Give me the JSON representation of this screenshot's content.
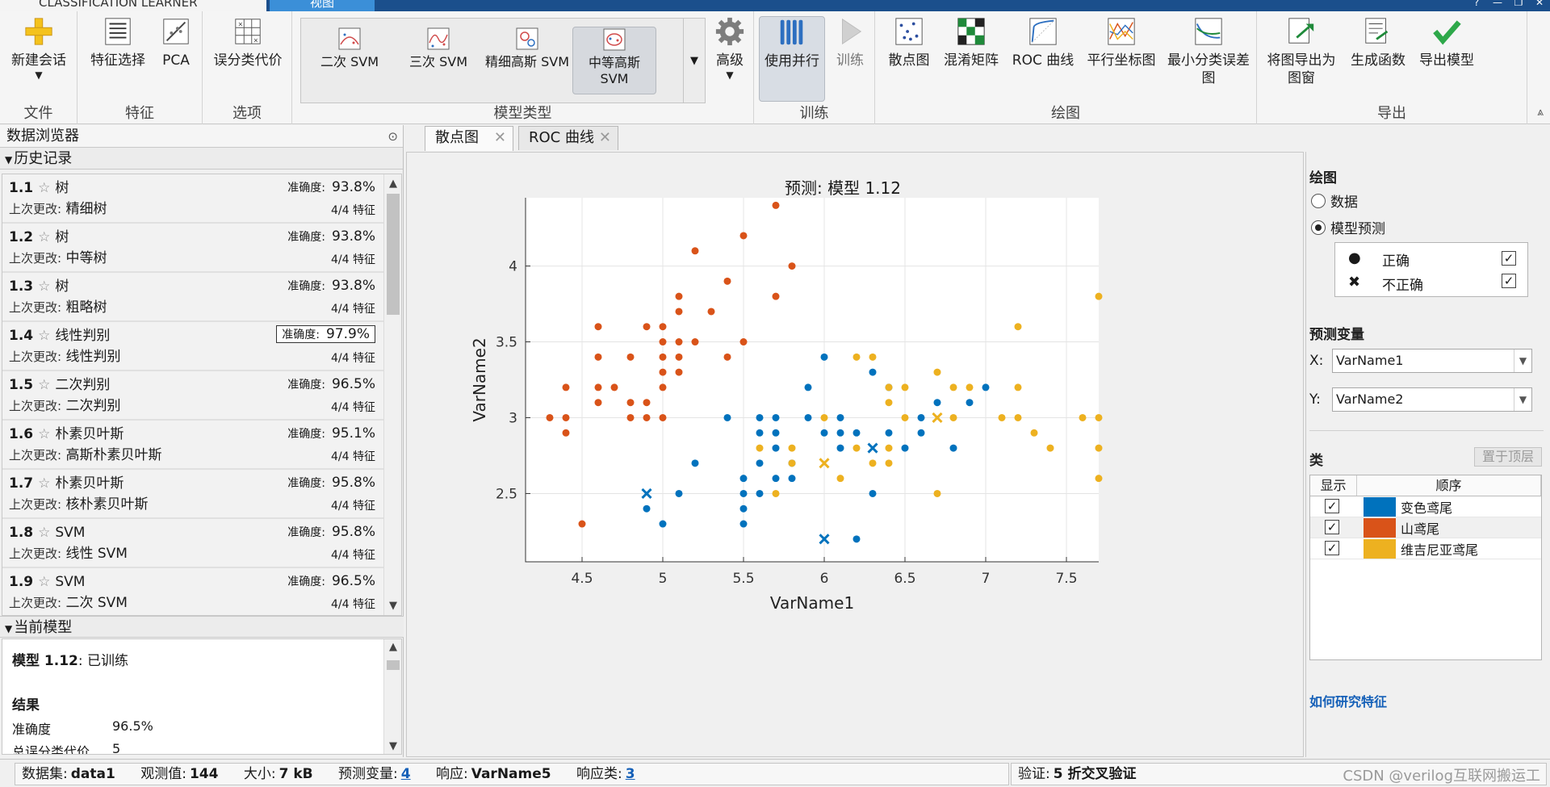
{
  "titlebar": {
    "app_tab": "CLASSIFICATION LEARNER",
    "view_tab": "视图"
  },
  "ribbon": {
    "file": {
      "group": "文件",
      "new_session": "新建会话"
    },
    "features": {
      "group": "特征",
      "feature_selection": "特征选择",
      "pca": "PCA"
    },
    "options": {
      "group": "选项",
      "misclass_cost": "误分类代价"
    },
    "model_type": {
      "group": "模型类型",
      "items": [
        "二次 SVM",
        "三次 SVM",
        "精细高斯 SVM",
        "中等高斯 SVM"
      ],
      "advanced": "高级"
    },
    "training": {
      "group": "训练",
      "parallel": "使用并行",
      "train": "训练"
    },
    "plots": {
      "group": "绘图",
      "items": [
        "散点图",
        "混淆矩阵",
        "ROC 曲线",
        "平行坐标图",
        "最小分类误差图"
      ]
    },
    "export": {
      "group": "导出",
      "items": [
        "将图导出为图窗",
        "生成函数",
        "导出模型"
      ]
    }
  },
  "data_browser": {
    "title": "数据浏览器",
    "history_label": "历史记录",
    "items": [
      {
        "num": "1.1",
        "name": "树",
        "acc_label": "准确度:",
        "acc": "93.8%",
        "changed_label": "上次更改:",
        "changed": "精细树",
        "features": "4/4 特征"
      },
      {
        "num": "1.2",
        "name": "树",
        "acc_label": "准确度:",
        "acc": "93.8%",
        "changed_label": "上次更改:",
        "changed": "中等树",
        "features": "4/4 特征"
      },
      {
        "num": "1.3",
        "name": "树",
        "acc_label": "准确度:",
        "acc": "93.8%",
        "changed_label": "上次更改:",
        "changed": "粗略树",
        "features": "4/4 特征"
      },
      {
        "num": "1.4",
        "name": "线性判别",
        "acc_label": "准确度:",
        "acc": "97.9%",
        "changed_label": "上次更改:",
        "changed": "线性判别",
        "features": "4/4 特征"
      },
      {
        "num": "1.5",
        "name": "二次判别",
        "acc_label": "准确度:",
        "acc": "96.5%",
        "changed_label": "上次更改:",
        "changed": "二次判别",
        "features": "4/4 特征"
      },
      {
        "num": "1.6",
        "name": "朴素贝叶斯",
        "acc_label": "准确度:",
        "acc": "95.1%",
        "changed_label": "上次更改:",
        "changed": "高斯朴素贝叶斯",
        "features": "4/4 特征"
      },
      {
        "num": "1.7",
        "name": "朴素贝叶斯",
        "acc_label": "准确度:",
        "acc": "95.8%",
        "changed_label": "上次更改:",
        "changed": "核朴素贝叶斯",
        "features": "4/4 特征"
      },
      {
        "num": "1.8",
        "name": "SVM",
        "acc_label": "准确度:",
        "acc": "95.8%",
        "changed_label": "上次更改:",
        "changed": "线性 SVM",
        "features": "4/4 特征"
      },
      {
        "num": "1.9",
        "name": "SVM",
        "acc_label": "准确度:",
        "acc": "96.5%",
        "changed_label": "上次更改:",
        "changed": "二次 SVM",
        "features": "4/4 特征"
      }
    ],
    "current_model_label": "当前模型",
    "current_model": {
      "title_prefix": "模型 1.12",
      "title_suffix": ": 已训练",
      "results_label": "结果",
      "accuracy_label": "准确度",
      "accuracy": "96.5%",
      "cost_label": "总误分类代价",
      "cost": "5"
    }
  },
  "doc_tabs": [
    "散点图",
    "ROC 曲线"
  ],
  "plot": {
    "title": "预测: 模型 1.12",
    "xlabel": "VarName1",
    "ylabel": "VarName2"
  },
  "chart_data": {
    "type": "scatter",
    "title": "预测: 模型 1.12",
    "xlabel": "VarName1",
    "ylabel": "VarName2",
    "xlim": [
      4.15,
      7.7
    ],
    "ylim": [
      2.05,
      4.45
    ],
    "xticks": [
      "4.5",
      "5",
      "5.5",
      "6",
      "6.5",
      "7",
      "7.5"
    ],
    "yticks": [
      "2.5",
      "3",
      "3.5",
      "4"
    ],
    "grid": true,
    "colors": {
      "变色鸢尾": "#0072BD",
      "山鸢尾": "#D95319",
      "维吉尼亚鸢尾": "#EDB120"
    },
    "series": [
      {
        "name": "山鸢尾",
        "correct": [
          [
            5.7,
            4.4
          ],
          [
            5.5,
            4.2
          ],
          [
            5.2,
            4.1
          ],
          [
            5.8,
            4.0
          ],
          [
            5.4,
            3.9
          ],
          [
            5.1,
            3.8
          ],
          [
            5.7,
            3.8
          ],
          [
            5.1,
            3.7
          ],
          [
            5.3,
            3.7
          ],
          [
            4.6,
            3.6
          ],
          [
            4.9,
            3.6
          ],
          [
            5.0,
            3.6
          ],
          [
            5.0,
            3.5
          ],
          [
            5.1,
            3.5
          ],
          [
            5.2,
            3.5
          ],
          [
            5.5,
            3.5
          ],
          [
            4.6,
            3.4
          ],
          [
            4.8,
            3.4
          ],
          [
            5.0,
            3.4
          ],
          [
            5.1,
            3.4
          ],
          [
            5.4,
            3.4
          ],
          [
            5.0,
            3.3
          ],
          [
            5.1,
            3.3
          ],
          [
            4.4,
            3.2
          ],
          [
            4.6,
            3.2
          ],
          [
            4.7,
            3.2
          ],
          [
            5.0,
            3.2
          ],
          [
            4.6,
            3.1
          ],
          [
            4.8,
            3.1
          ],
          [
            4.9,
            3.1
          ],
          [
            4.3,
            3.0
          ],
          [
            4.4,
            3.0
          ],
          [
            4.8,
            3.0
          ],
          [
            4.9,
            3.0
          ],
          [
            5.0,
            3.0
          ],
          [
            4.4,
            2.9
          ],
          [
            4.5,
            2.3
          ]
        ],
        "incorrect": []
      },
      {
        "name": "变色鸢尾",
        "correct": [
          [
            6.0,
            3.4
          ],
          [
            6.3,
            3.3
          ],
          [
            5.9,
            3.2
          ],
          [
            6.4,
            3.2
          ],
          [
            7.0,
            3.2
          ],
          [
            6.7,
            3.1
          ],
          [
            6.9,
            3.1
          ],
          [
            5.4,
            3.0
          ],
          [
            5.6,
            3.0
          ],
          [
            5.7,
            3.0
          ],
          [
            5.9,
            3.0
          ],
          [
            6.1,
            3.0
          ],
          [
            6.6,
            3.0
          ],
          [
            5.6,
            2.9
          ],
          [
            5.7,
            2.9
          ],
          [
            6.0,
            2.9
          ],
          [
            6.1,
            2.9
          ],
          [
            6.2,
            2.9
          ],
          [
            6.4,
            2.9
          ],
          [
            6.6,
            2.9
          ],
          [
            5.7,
            2.8
          ],
          [
            6.1,
            2.8
          ],
          [
            6.5,
            2.8
          ],
          [
            6.8,
            2.8
          ],
          [
            5.2,
            2.7
          ],
          [
            5.6,
            2.7
          ],
          [
            5.8,
            2.7
          ],
          [
            5.7,
            2.6
          ],
          [
            5.8,
            2.6
          ],
          [
            5.5,
            2.6
          ],
          [
            5.1,
            2.5
          ],
          [
            5.5,
            2.5
          ],
          [
            5.6,
            2.5
          ],
          [
            6.3,
            2.5
          ],
          [
            4.9,
            2.4
          ],
          [
            5.5,
            2.4
          ],
          [
            5.0,
            2.3
          ],
          [
            5.5,
            2.3
          ],
          [
            6.2,
            2.2
          ]
        ],
        "incorrect": [
          [
            4.9,
            2.5
          ],
          [
            6.3,
            2.8
          ],
          [
            6.0,
            2.2
          ]
        ]
      },
      {
        "name": "维吉尼亚鸢尾",
        "correct": [
          [
            7.7,
            3.8
          ],
          [
            7.2,
            3.6
          ],
          [
            6.2,
            3.4
          ],
          [
            6.3,
            3.4
          ],
          [
            6.7,
            3.3
          ],
          [
            6.4,
            3.2
          ],
          [
            6.5,
            3.2
          ],
          [
            6.8,
            3.2
          ],
          [
            6.9,
            3.2
          ],
          [
            7.2,
            3.2
          ],
          [
            6.4,
            3.1
          ],
          [
            6.0,
            3.0
          ],
          [
            6.5,
            3.0
          ],
          [
            6.8,
            3.0
          ],
          [
            7.1,
            3.0
          ],
          [
            7.2,
            3.0
          ],
          [
            7.6,
            3.0
          ],
          [
            7.7,
            3.0
          ],
          [
            7.3,
            2.9
          ],
          [
            5.6,
            2.8
          ],
          [
            5.8,
            2.8
          ],
          [
            6.2,
            2.8
          ],
          [
            6.3,
            2.7
          ],
          [
            6.4,
            2.8
          ],
          [
            7.4,
            2.8
          ],
          [
            7.7,
            2.8
          ],
          [
            6.4,
            2.7
          ],
          [
            5.8,
            2.7
          ],
          [
            6.1,
            2.6
          ],
          [
            7.7,
            2.6
          ],
          [
            5.7,
            2.5
          ],
          [
            6.7,
            2.5
          ]
        ],
        "incorrect": [
          [
            6.7,
            3.0
          ],
          [
            6.0,
            2.7
          ]
        ]
      }
    ]
  },
  "right_panel": {
    "plot_label": "绘图",
    "radio_data": "数据",
    "radio_prediction": "模型预测",
    "legend": {
      "correct": "正确",
      "incorrect": "不正确"
    },
    "predictors_label": "预测变量",
    "x_label": "X:",
    "x_value": "VarName1",
    "y_label": "Y:",
    "y_value": "VarName2",
    "classes_label": "类",
    "bring_to_top": "置于顶层",
    "table_headers": [
      "显示",
      "顺序"
    ],
    "classes": [
      {
        "name": "变色鸢尾",
        "color": "#0072BD"
      },
      {
        "name": "山鸢尾",
        "color": "#D95319"
      },
      {
        "name": "维吉尼亚鸢尾",
        "color": "#EDB120"
      }
    ],
    "how_link": "如何研究特征"
  },
  "status": {
    "dataset_label": "数据集:",
    "dataset": "data1",
    "obs_label": "观测值:",
    "obs": "144",
    "size_label": "大小:",
    "size": "7 kB",
    "predictors_label": "预测变量:",
    "predictors": "4",
    "response_label": "响应:",
    "response": "VarName5",
    "classes_label": "响应类:",
    "classes": "3",
    "validation_label": "验证:",
    "validation": "5 折交叉验证",
    "watermark": "CSDN @verilog互联网搬运工"
  }
}
